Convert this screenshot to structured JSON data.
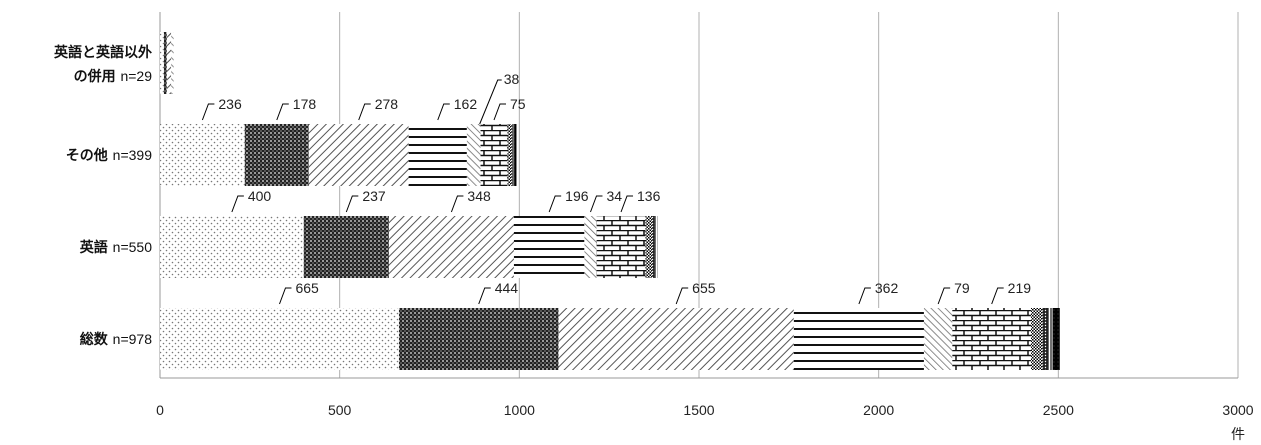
{
  "chart_data": {
    "type": "bar",
    "orientation": "horizontal",
    "stacked": true,
    "unit": "件",
    "xlim": [
      0,
      3000
    ],
    "x_ticks": [
      0,
      500,
      1000,
      1500,
      2000,
      2500,
      3000
    ],
    "grid": true,
    "categories": [
      {
        "name": "英語と英語以外の併用",
        "line1": "英語と英語以外",
        "line2": "の併用",
        "n_label": "n=29"
      },
      {
        "name": "その他",
        "n_label": "n=399"
      },
      {
        "name": "英語",
        "n_label": "n=550"
      },
      {
        "name": "総数",
        "n_label": "n=978"
      }
    ],
    "series": [
      {
        "pattern": "dots-light",
        "values": [
          11,
          236,
          400,
          665
        ]
      },
      {
        "pattern": "checker-dark",
        "values": [
          8,
          178,
          237,
          444
        ]
      },
      {
        "pattern": "diagonal",
        "values": [
          12,
          278,
          348,
          655
        ]
      },
      {
        "pattern": "horizontal-lines",
        "values": [
          0,
          162,
          196,
          362
        ]
      },
      {
        "pattern": "diagonal-wide",
        "values": [
          7,
          38,
          34,
          79
        ]
      },
      {
        "pattern": "brick",
        "values": [
          0,
          75,
          136,
          219
        ]
      },
      {
        "pattern": "checker-small",
        "values": [
          0,
          10,
          18,
          32
        ]
      },
      {
        "pattern": "dots-dense",
        "values": [
          0,
          5,
          8,
          14
        ]
      },
      {
        "pattern": "vertical-lines",
        "values": [
          0,
          4,
          8,
          14
        ]
      },
      {
        "pattern": "solid-dark",
        "values": [
          0,
          6,
          0,
          20
        ]
      }
    ],
    "data_labels": [
      [],
      [
        "236",
        "178",
        "278",
        "162",
        "38",
        "75"
      ],
      [
        "400",
        "237",
        "348",
        "196",
        "34",
        "136"
      ],
      [
        "665",
        "444",
        "655",
        "362",
        "79",
        "219"
      ]
    ]
  }
}
